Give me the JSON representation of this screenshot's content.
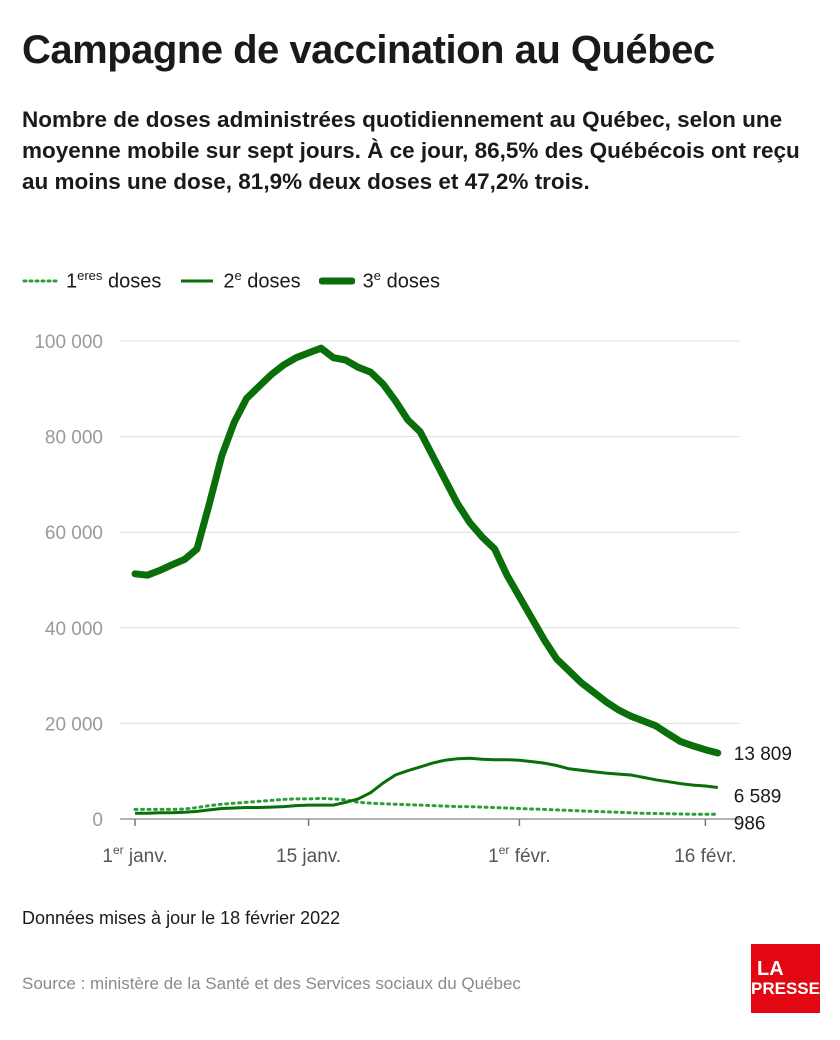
{
  "header": {
    "title": "Campagne de vaccination au Québec",
    "subtitle": "Nombre de doses administrées quotidiennement au Québec, selon une moyenne mobile sur sept jours. À ce jour, 86,5% des Québécois ont reçu au moins une dose, 81,9% deux doses et 47,2% trois."
  },
  "legend": [
    {
      "num": "1",
      "sup": "eres",
      "text": "doses",
      "style": "dotted"
    },
    {
      "num": "2",
      "sup": "e",
      "text": "doses",
      "style": "solid"
    },
    {
      "num": "3",
      "sup": "e",
      "text": "doses",
      "style": "thick"
    }
  ],
  "colors": {
    "line": "#0a6e0a",
    "dotted": "#2e9e3a",
    "grid": "#dddddd",
    "logo": "#e30613"
  },
  "chart_data": {
    "type": "line",
    "title": "Campagne de vaccination au Québec",
    "xlabel": "",
    "ylabel": "",
    "ylim": [
      0,
      100000
    ],
    "yticks": [
      0,
      20000,
      40000,
      60000,
      80000,
      100000
    ],
    "ytick_labels": [
      "0",
      "20 000",
      "40 000",
      "60 000",
      "80 000",
      "100 000"
    ],
    "xlim": [
      "2022-01-01",
      "2022-02-17"
    ],
    "xticks": [
      {
        "date": "2022-01-01",
        "num": "1",
        "sup": "er",
        "text": "janv."
      },
      {
        "date": "2022-01-15",
        "num": "",
        "sup": "",
        "text": "15 janv."
      },
      {
        "date": "2022-02-01",
        "num": "1",
        "sup": "er",
        "text": "févr."
      },
      {
        "date": "2022-02-16",
        "num": "",
        "sup": "",
        "text": "16 févr."
      }
    ],
    "grid": true,
    "legend_position": "top-left",
    "x": [
      "2022-01-01",
      "2022-01-02",
      "2022-01-03",
      "2022-01-04",
      "2022-01-05",
      "2022-01-06",
      "2022-01-07",
      "2022-01-08",
      "2022-01-09",
      "2022-01-10",
      "2022-01-11",
      "2022-01-12",
      "2022-01-13",
      "2022-01-14",
      "2022-01-15",
      "2022-01-16",
      "2022-01-17",
      "2022-01-18",
      "2022-01-19",
      "2022-01-20",
      "2022-01-21",
      "2022-01-22",
      "2022-01-23",
      "2022-01-24",
      "2022-01-25",
      "2022-01-26",
      "2022-01-27",
      "2022-01-28",
      "2022-01-29",
      "2022-01-30",
      "2022-01-31",
      "2022-02-01",
      "2022-02-02",
      "2022-02-03",
      "2022-02-04",
      "2022-02-05",
      "2022-02-06",
      "2022-02-07",
      "2022-02-08",
      "2022-02-09",
      "2022-02-10",
      "2022-02-11",
      "2022-02-12",
      "2022-02-13",
      "2022-02-14",
      "2022-02-15",
      "2022-02-16",
      "2022-02-17"
    ],
    "series": [
      {
        "name": "1eres doses",
        "style": "dotted",
        "values": [
          2000,
          2000,
          2000,
          2000,
          2100,
          2400,
          2800,
          3100,
          3300,
          3500,
          3700,
          3900,
          4100,
          4200,
          4200,
          4300,
          4200,
          4000,
          3500,
          3300,
          3200,
          3100,
          3000,
          2900,
          2800,
          2700,
          2600,
          2600,
          2500,
          2400,
          2300,
          2200,
          2100,
          2000,
          1900,
          1800,
          1700,
          1600,
          1500,
          1400,
          1300,
          1200,
          1150,
          1100,
          1050,
          1000,
          990,
          986
        ],
        "end_label": "986"
      },
      {
        "name": "2e doses",
        "style": "solid",
        "values": [
          1200,
          1200,
          1300,
          1300,
          1400,
          1600,
          1900,
          2200,
          2300,
          2400,
          2400,
          2500,
          2600,
          2800,
          2900,
          2900,
          2900,
          3500,
          4200,
          5500,
          7500,
          9200,
          10100,
          10900,
          11700,
          12300,
          12600,
          12700,
          12500,
          12400,
          12400,
          12300,
          12000,
          11700,
          11200,
          10500,
          10200,
          9900,
          9600,
          9400,
          9200,
          8700,
          8200,
          7800,
          7400,
          7100,
          6900,
          6589
        ],
        "end_label": "6 589"
      },
      {
        "name": "3e doses",
        "style": "thick",
        "values": [
          51300,
          51000,
          52000,
          53200,
          54300,
          56500,
          66000,
          76000,
          83000,
          88000,
          90500,
          93000,
          95000,
          96500,
          97500,
          98500,
          96500,
          96000,
          94500,
          93500,
          91000,
          87500,
          83500,
          81000,
          76000,
          71000,
          66000,
          62000,
          59000,
          56500,
          51000,
          46500,
          42000,
          37500,
          33500,
          31000,
          28500,
          26500,
          24500,
          22800,
          21500,
          20500,
          19500,
          17800,
          16200,
          15300,
          14500,
          13809
        ],
        "end_label": "13 809"
      }
    ]
  },
  "footer": {
    "updated": "Données mises à jour le 18 février 2022",
    "source": "Source : ministère de la Santé et des Services sociaux du Québec",
    "logo_line1": "LA",
    "logo_line2": "PRESSE"
  }
}
